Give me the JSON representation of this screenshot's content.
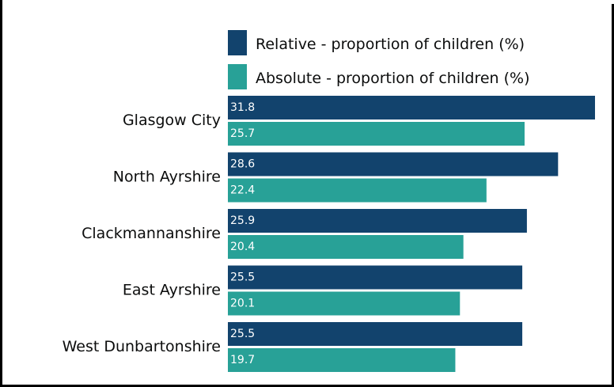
{
  "colors": {
    "relative": "#12436d",
    "absolute": "#28a197",
    "text": "#0b0c0c",
    "border": "#000000"
  },
  "legend": {
    "relative_label": "Relative - proportion of children (%)",
    "absolute_label": "Absolute - proportion of children (%)"
  },
  "chart_data": {
    "type": "bar",
    "orientation": "horizontal",
    "categories": [
      "Glasgow City",
      "North Ayrshire",
      "Clackmannanshire",
      "East Ayrshire",
      "West Dunbartonshire"
    ],
    "series": [
      {
        "name": "Relative - proportion of children (%)",
        "values": [
          31.8,
          28.6,
          25.9,
          25.5,
          25.5
        ]
      },
      {
        "name": "Absolute - proportion of children (%)",
        "values": [
          25.7,
          22.4,
          20.4,
          20.1,
          19.7
        ]
      }
    ],
    "legend_position": "top",
    "grid": false,
    "data_labels": true
  }
}
